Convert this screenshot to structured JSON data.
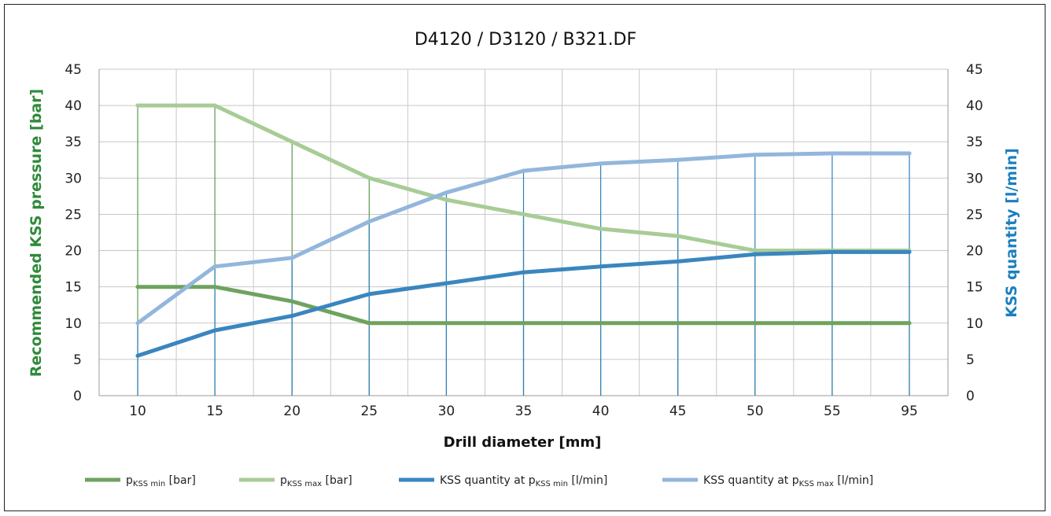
{
  "chart_data": {
    "type": "line",
    "title": "D4120 / D3120 / B321.DF",
    "xlabel": "Drill diameter [mm]",
    "ylabel_left": "Recommended KSS pressure [bar]",
    "ylabel_right": "KSS quantity [l/min]",
    "categories": [
      "10",
      "15",
      "20",
      "25",
      "30",
      "35",
      "40",
      "45",
      "50",
      "55",
      "95"
    ],
    "ylim": [
      0,
      45
    ],
    "yticks": [
      0,
      5,
      10,
      15,
      20,
      25,
      30,
      35,
      40,
      45
    ],
    "grid": true,
    "legend_position": "bottom",
    "colors": {
      "pmin": "#6ea35e",
      "pmax": "#a8cc96",
      "qmin": "#3a86bf",
      "qmax": "#93b6dc",
      "drop_green": "#5a9a4e",
      "drop_blue": "#2f7fbf",
      "left_axis_label": "#2f8a3a",
      "right_axis_label": "#1c7fbf"
    },
    "series": [
      {
        "key": "pmin",
        "legend_main": "p",
        "legend_sub": "KSS min",
        "legend_tail": " [bar]",
        "axis": "left",
        "values": [
          15,
          15,
          13,
          10,
          10,
          10,
          10,
          10,
          10,
          10,
          10
        ]
      },
      {
        "key": "pmax",
        "legend_main": "p",
        "legend_sub": "KSS max",
        "legend_tail": " [bar]",
        "axis": "left",
        "values": [
          40,
          40,
          35,
          30,
          27,
          25,
          23,
          22,
          20,
          20,
          20
        ]
      },
      {
        "key": "qmin",
        "legend_main": "KSS quantity at p",
        "legend_sub": "KSS min",
        "legend_tail": " [l/min]",
        "axis": "right",
        "values": [
          5.5,
          9,
          11,
          14,
          15.5,
          17,
          17.8,
          18.5,
          19.5,
          19.8,
          19.8
        ]
      },
      {
        "key": "qmax",
        "legend_main": "KSS quantity at p",
        "legend_sub": "KSS max",
        "legend_tail": " [l/min]",
        "axis": "right",
        "values": [
          10,
          17.8,
          19,
          24,
          28,
          31,
          32,
          32.5,
          33.2,
          33.4,
          33.4
        ]
      }
    ]
  }
}
